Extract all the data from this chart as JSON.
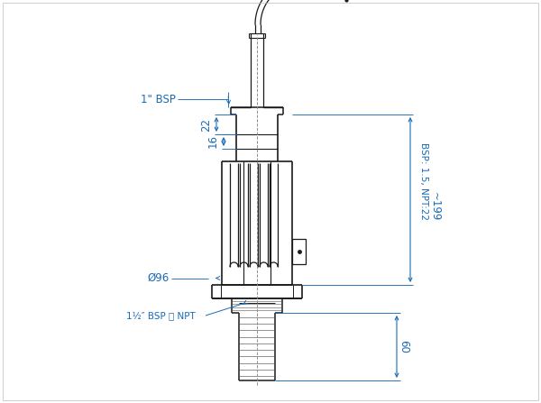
{
  "bg_color": "#ffffff",
  "line_color": "#1a1a1a",
  "dim_color": "#1a6bb5",
  "fig_width": 6.0,
  "fig_height": 4.47,
  "labels": {
    "bsp_top": "1\" BSP",
    "dim_22": "22",
    "dim_16": "16",
    "dim_96": "Ø96",
    "bsp_bottom": "1½″ BSP 或 NPT",
    "dim_bsp": "BSP: 1.5, NPT:22",
    "dim_199": "~199",
    "dim_60": "60"
  }
}
